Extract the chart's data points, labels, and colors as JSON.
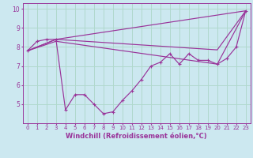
{
  "xlabel": "Windchill (Refroidissement éolien,°C)",
  "bg_color": "#cce8f0",
  "grid_color": "#b0d8cc",
  "line_color": "#993399",
  "line1_x": [
    0,
    1,
    2,
    3,
    4,
    5,
    6,
    7,
    8,
    9,
    10,
    11,
    12,
    13,
    14,
    15,
    16,
    17,
    18,
    19,
    20,
    21,
    22,
    23
  ],
  "line1_y": [
    7.8,
    8.3,
    8.4,
    8.4,
    4.7,
    5.5,
    5.5,
    5.0,
    4.5,
    4.6,
    5.2,
    5.7,
    6.3,
    7.0,
    7.2,
    7.65,
    7.1,
    7.65,
    7.3,
    7.3,
    7.1,
    7.4,
    8.0,
    9.9
  ],
  "line2_x": [
    0,
    3,
    23
  ],
  "line2_y": [
    7.8,
    8.4,
    9.9
  ],
  "line3_x": [
    0,
    3,
    20,
    23
  ],
  "line3_y": [
    7.8,
    8.4,
    7.85,
    9.9
  ],
  "line4_x": [
    0,
    3,
    20,
    23
  ],
  "line4_y": [
    7.8,
    8.3,
    7.1,
    9.9
  ],
  "xlim": [
    -0.5,
    23.5
  ],
  "ylim": [
    4.0,
    10.3
  ],
  "yticks": [
    5,
    6,
    7,
    8,
    9,
    10
  ],
  "xticks": [
    0,
    1,
    2,
    3,
    4,
    5,
    6,
    7,
    8,
    9,
    10,
    11,
    12,
    13,
    14,
    15,
    16,
    17,
    18,
    19,
    20,
    21,
    22,
    23
  ],
  "tick_fontsize": 5.0,
  "xlabel_fontsize": 6.0
}
